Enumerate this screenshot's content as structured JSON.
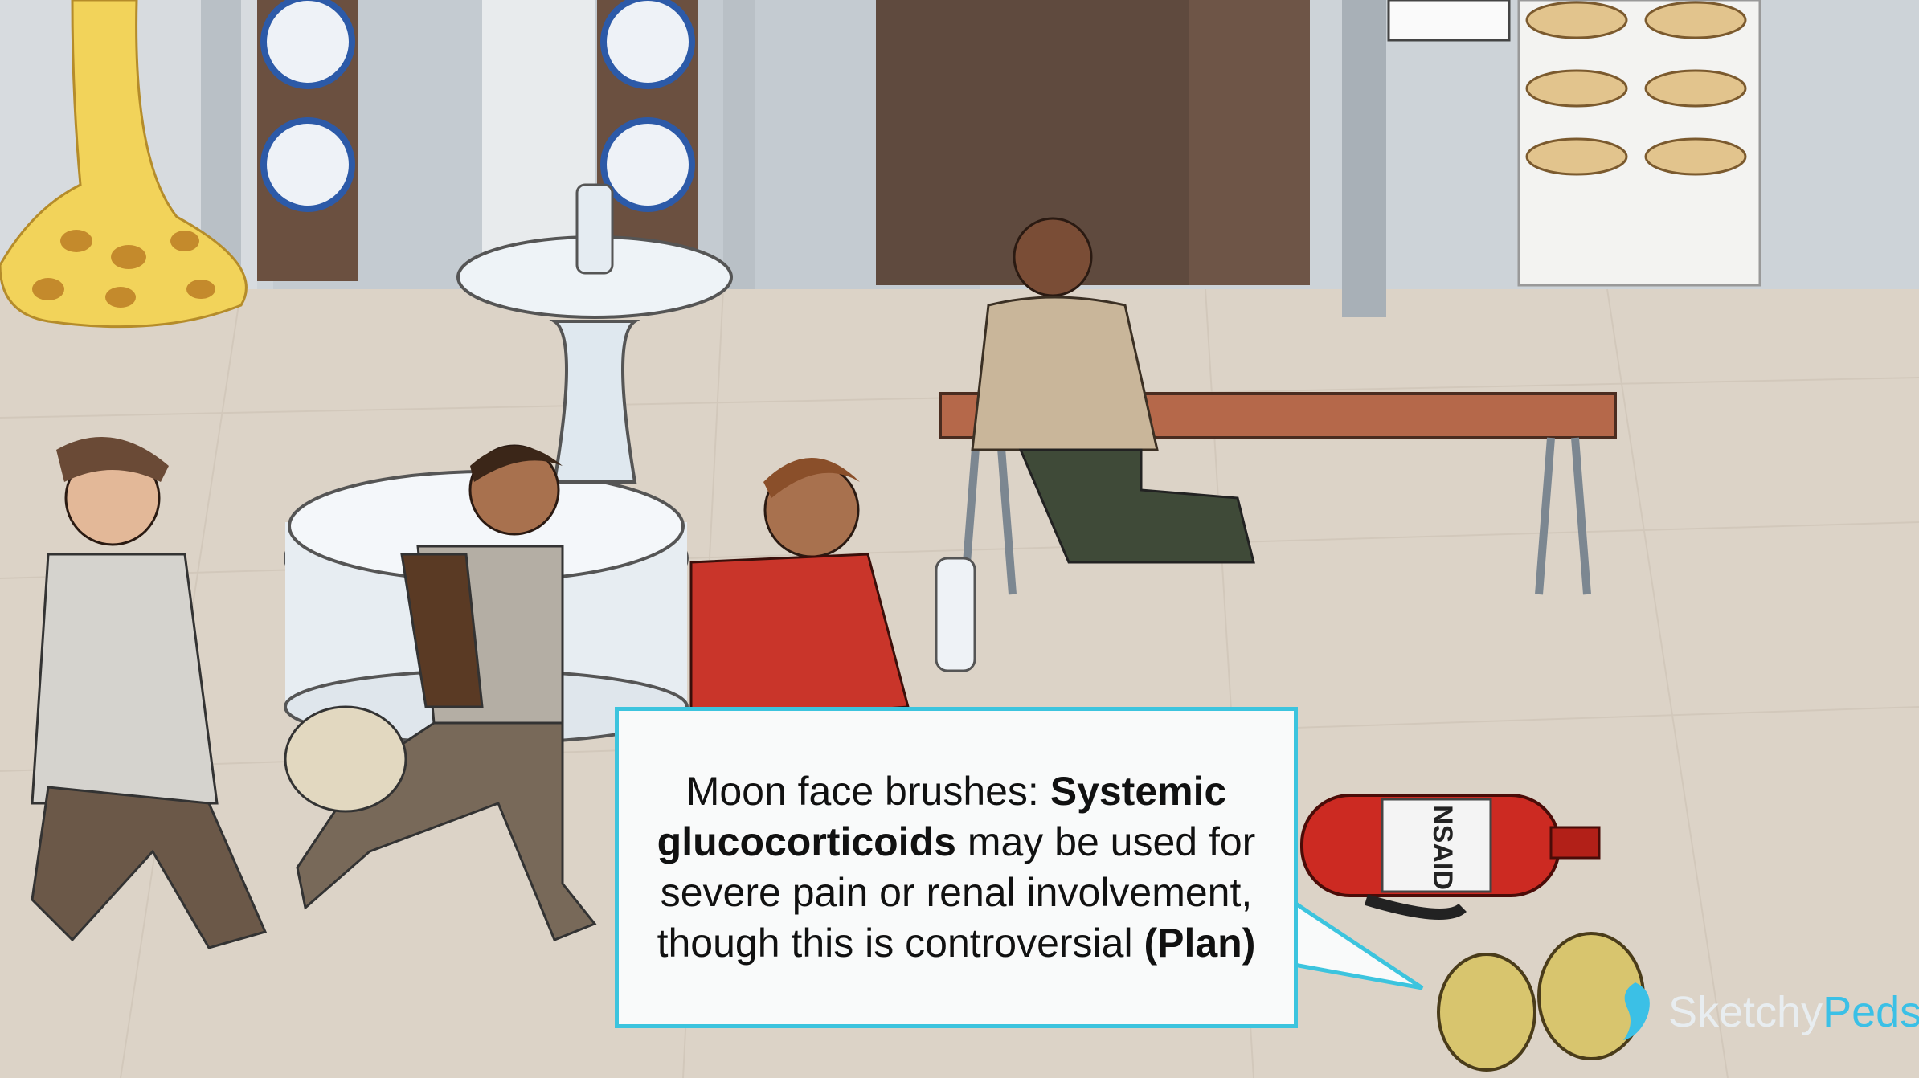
{
  "callout": {
    "pre": "Moon face brushes: ",
    "bold1": "Systemic glucocorticoids",
    "mid": " may be used for severe pain or renal involvement, though this is controversial ",
    "bold2": "(Plan)"
  },
  "extinguisher_label": "NSAID",
  "brand": {
    "part1": "Sketchy",
    "part2": "Peds"
  },
  "colors": {
    "accent": "#3cc4de",
    "brand_blue": "#3bc0e6"
  }
}
